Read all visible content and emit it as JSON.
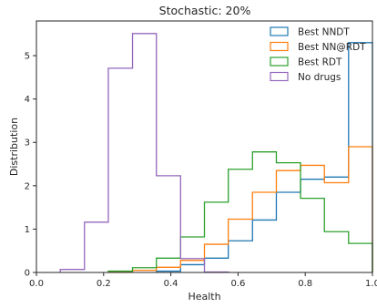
{
  "chart_data": {
    "type": "histogram",
    "title": "Stochastic: 20%",
    "xlabel": "Health",
    "ylabel": "Distribution",
    "xlim": [
      0.0,
      1.0
    ],
    "ylim": [
      0,
      5.8
    ],
    "xticks": [
      "0.0",
      "0.2",
      "0.4",
      "0.6",
      "0.8",
      "1.0"
    ],
    "yticks": [
      "0",
      "1",
      "2",
      "3",
      "4",
      "5"
    ],
    "grid": false,
    "legend_position": "top-right",
    "series": [
      {
        "name": "Best NNDT",
        "color": "#1f77b4",
        "edges": [
          0.357,
          0.429,
          0.5,
          0.571,
          0.643,
          0.714,
          0.786,
          0.857,
          0.929,
          1.0
        ],
        "values": [
          0.03,
          0.18,
          0.33,
          0.73,
          1.21,
          1.85,
          2.15,
          2.2,
          5.3
        ]
      },
      {
        "name": "Best NN@RDT",
        "color": "#ff7f0e",
        "edges": [
          0.214,
          0.286,
          0.357,
          0.429,
          0.5,
          0.571,
          0.643,
          0.714,
          0.786,
          0.857,
          0.929,
          1.0
        ],
        "values": [
          0.02,
          0.05,
          0.12,
          0.28,
          0.65,
          1.23,
          1.85,
          2.35,
          2.47,
          2.07,
          2.9
        ]
      },
      {
        "name": "Best RDT",
        "color": "#2ca02c",
        "edges": [
          0.214,
          0.286,
          0.357,
          0.429,
          0.5,
          0.571,
          0.643,
          0.714,
          0.786,
          0.857,
          0.929,
          1.0
        ],
        "values": [
          0.03,
          0.11,
          0.33,
          0.82,
          1.62,
          2.38,
          2.78,
          2.53,
          1.71,
          0.94,
          0.67
        ]
      },
      {
        "name": "No drugs",
        "color": "#9467bd",
        "edges": [
          0.071,
          0.143,
          0.214,
          0.286,
          0.357,
          0.429,
          0.5,
          0.571
        ],
        "values": [
          0.07,
          1.16,
          4.71,
          5.51,
          2.23,
          0.32,
          0.01
        ]
      }
    ]
  }
}
